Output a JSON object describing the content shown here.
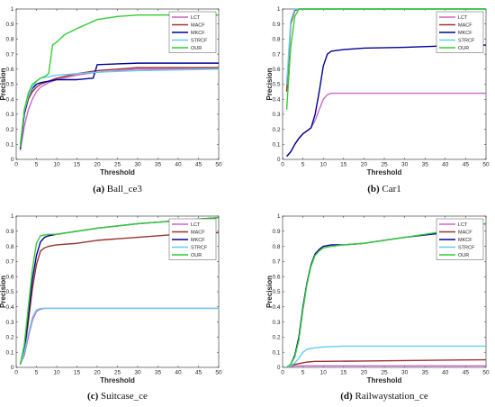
{
  "chart_data": [
    {
      "type": "line",
      "caption_letter": "(a)",
      "caption_name": "Ball_ce3",
      "xlabel": "Threshold",
      "ylabel": "Precision",
      "xlim": [
        0,
        50
      ],
      "ylim": [
        0,
        1
      ],
      "xticks": [
        0,
        5,
        10,
        15,
        20,
        25,
        30,
        35,
        40,
        45,
        50
      ],
      "yticks": [
        0,
        0.1,
        0.2,
        0.3,
        0.4,
        0.5,
        0.6,
        0.7,
        0.8,
        0.9,
        1
      ],
      "grid": false,
      "legend_position": "top-right",
      "series": [
        {
          "name": "LCT",
          "color": "#cc66cc",
          "x": [
            1,
            2,
            3,
            4,
            5,
            6,
            8,
            10,
            15,
            20,
            30,
            50
          ],
          "y": [
            0.06,
            0.22,
            0.33,
            0.4,
            0.45,
            0.48,
            0.51,
            0.53,
            0.56,
            0.58,
            0.6,
            0.6
          ]
        },
        {
          "name": "MACF",
          "color": "#993333",
          "x": [
            1,
            2,
            3,
            4,
            5,
            6,
            8,
            10,
            15,
            20,
            30,
            50
          ],
          "y": [
            0.1,
            0.3,
            0.4,
            0.45,
            0.48,
            0.5,
            0.52,
            0.54,
            0.57,
            0.59,
            0.61,
            0.61
          ]
        },
        {
          "name": "MKCF",
          "color": "#000099",
          "x": [
            1,
            2,
            3,
            4,
            5,
            6,
            8,
            10,
            15,
            19,
            20,
            30,
            50
          ],
          "y": [
            0.07,
            0.3,
            0.42,
            0.47,
            0.5,
            0.51,
            0.52,
            0.53,
            0.53,
            0.54,
            0.63,
            0.64,
            0.64
          ]
        },
        {
          "name": "STRCF",
          "color": "#66ccee",
          "x": [
            1,
            2,
            3,
            4,
            5,
            6,
            8,
            10,
            15,
            20,
            30,
            50
          ],
          "y": [
            0.1,
            0.32,
            0.42,
            0.48,
            0.52,
            0.54,
            0.55,
            0.56,
            0.57,
            0.58,
            0.59,
            0.6
          ]
        },
        {
          "name": "OUR",
          "color": "#33cc33",
          "x": [
            1,
            2,
            3,
            4,
            5,
            6,
            7,
            8,
            9,
            10,
            12,
            15,
            20,
            25,
            30,
            50
          ],
          "y": [
            0.08,
            0.33,
            0.44,
            0.5,
            0.52,
            0.54,
            0.55,
            0.57,
            0.76,
            0.78,
            0.83,
            0.87,
            0.93,
            0.95,
            0.96,
            0.96
          ]
        }
      ]
    },
    {
      "type": "line",
      "caption_letter": "(b)",
      "caption_name": "Car1",
      "xlabel": "Threshold",
      "ylabel": "Precision",
      "xlim": [
        0,
        50
      ],
      "ylim": [
        0,
        1
      ],
      "xticks": [
        0,
        5,
        10,
        15,
        20,
        25,
        30,
        35,
        40,
        45,
        50
      ],
      "yticks": [
        0,
        0.1,
        0.2,
        0.3,
        0.4,
        0.5,
        0.6,
        0.7,
        0.8,
        0.9,
        1
      ],
      "grid": false,
      "legend_position": "top-right",
      "series": [
        {
          "name": "LCT",
          "color": "#cc66cc",
          "x": [
            1,
            2,
            3,
            4,
            5,
            6,
            7,
            8,
            9,
            10,
            11,
            12,
            15,
            20,
            50
          ],
          "y": [
            0.02,
            0.05,
            0.1,
            0.14,
            0.17,
            0.19,
            0.21,
            0.26,
            0.33,
            0.4,
            0.43,
            0.44,
            0.44,
            0.44,
            0.44
          ]
        },
        {
          "name": "MACF",
          "color": "#993333",
          "x": [
            1,
            2,
            3,
            4,
            5,
            50
          ],
          "y": [
            0.45,
            0.9,
            0.99,
            1.0,
            1.0,
            1.0
          ]
        },
        {
          "name": "MKCF",
          "color": "#000099",
          "x": [
            1,
            2,
            3,
            4,
            5,
            6,
            7,
            8,
            9,
            10,
            11,
            12,
            15,
            20,
            30,
            40,
            50
          ],
          "y": [
            0.02,
            0.05,
            0.1,
            0.14,
            0.17,
            0.19,
            0.21,
            0.3,
            0.45,
            0.62,
            0.7,
            0.72,
            0.73,
            0.74,
            0.745,
            0.755,
            0.76
          ]
        },
        {
          "name": "STRCF",
          "color": "#66ccee",
          "x": [
            1,
            2,
            3,
            4,
            50
          ],
          "y": [
            0.5,
            0.92,
            1.0,
            1.0,
            1.0
          ]
        },
        {
          "name": "OUR",
          "color": "#33cc33",
          "x": [
            1,
            2,
            3,
            4,
            5,
            50
          ],
          "y": [
            0.33,
            0.75,
            0.95,
            1.0,
            1.0,
            1.0
          ]
        }
      ]
    },
    {
      "type": "line",
      "caption_letter": "(c)",
      "caption_name": "Suitcase_ce",
      "xlabel": "Threshold",
      "ylabel": "Precision",
      "xlim": [
        0,
        50
      ],
      "ylim": [
        0,
        1
      ],
      "xticks": [
        0,
        5,
        10,
        15,
        20,
        25,
        30,
        35,
        40,
        45,
        50
      ],
      "yticks": [
        0,
        0.1,
        0.2,
        0.3,
        0.4,
        0.5,
        0.6,
        0.7,
        0.8,
        0.9,
        1
      ],
      "grid": false,
      "legend_position": "top-right",
      "series": [
        {
          "name": "LCT",
          "color": "#cc66cc",
          "x": [
            1,
            2,
            3,
            4,
            5,
            6,
            7,
            10,
            20,
            50
          ],
          "y": [
            0.02,
            0.08,
            0.2,
            0.31,
            0.37,
            0.385,
            0.39,
            0.39,
            0.39,
            0.39
          ]
        },
        {
          "name": "MACF",
          "color": "#993333",
          "x": [
            1,
            2,
            3,
            4,
            5,
            6,
            7,
            8,
            10,
            15,
            20,
            30,
            40,
            45,
            50
          ],
          "y": [
            0.02,
            0.1,
            0.3,
            0.52,
            0.68,
            0.77,
            0.79,
            0.8,
            0.81,
            0.82,
            0.84,
            0.86,
            0.88,
            0.89,
            0.89
          ]
        },
        {
          "name": "MKCF",
          "color": "#000099",
          "x": [
            1,
            2,
            3,
            4,
            5,
            6,
            7,
            8,
            10,
            20,
            30,
            40,
            45,
            50
          ],
          "y": [
            0.02,
            0.12,
            0.35,
            0.58,
            0.74,
            0.83,
            0.86,
            0.87,
            0.88,
            0.92,
            0.95,
            0.97,
            0.98,
            0.99
          ]
        },
        {
          "name": "STRCF",
          "color": "#66ccee",
          "x": [
            1,
            2,
            3,
            4,
            5,
            6,
            7,
            10,
            20,
            50
          ],
          "y": [
            0.02,
            0.1,
            0.22,
            0.33,
            0.38,
            0.39,
            0.39,
            0.39,
            0.39,
            0.39
          ]
        },
        {
          "name": "OUR",
          "color": "#33cc33",
          "x": [
            1,
            2,
            3,
            4,
            5,
            6,
            7,
            8,
            10,
            20,
            30,
            40,
            45,
            50
          ],
          "y": [
            0.02,
            0.15,
            0.4,
            0.65,
            0.82,
            0.87,
            0.875,
            0.88,
            0.88,
            0.92,
            0.95,
            0.97,
            0.98,
            0.99
          ]
        }
      ]
    },
    {
      "type": "line",
      "caption_letter": "(d)",
      "caption_name": "Railwaystation_ce",
      "xlabel": "Threshold",
      "ylabel": "Precision",
      "xlim": [
        0,
        50
      ],
      "ylim": [
        0,
        1
      ],
      "xticks": [
        0,
        5,
        10,
        15,
        20,
        25,
        30,
        35,
        40,
        45,
        50
      ],
      "yticks": [
        0,
        0.1,
        0.2,
        0.3,
        0.4,
        0.5,
        0.6,
        0.7,
        0.8,
        0.9,
        1
      ],
      "grid": false,
      "legend_position": "top-right",
      "series": [
        {
          "name": "LCT",
          "color": "#cc66cc",
          "x": [
            1,
            2,
            3,
            4,
            5,
            50
          ],
          "y": [
            0,
            0.005,
            0.01,
            0.01,
            0.01,
            0.01
          ]
        },
        {
          "name": "MACF",
          "color": "#993333",
          "x": [
            1,
            2,
            3,
            4,
            5,
            6,
            8,
            10,
            20,
            30,
            40,
            50
          ],
          "y": [
            0,
            0.01,
            0.02,
            0.025,
            0.03,
            0.035,
            0.04,
            0.04,
            0.042,
            0.045,
            0.048,
            0.05
          ]
        },
        {
          "name": "MKCF",
          "color": "#000099",
          "x": [
            1,
            2,
            3,
            4,
            5,
            6,
            7,
            8,
            9,
            10,
            12,
            15,
            20,
            30,
            40,
            45,
            50
          ],
          "y": [
            0,
            0.02,
            0.08,
            0.2,
            0.4,
            0.56,
            0.68,
            0.75,
            0.78,
            0.8,
            0.81,
            0.81,
            0.82,
            0.86,
            0.89,
            0.93,
            0.95
          ]
        },
        {
          "name": "STRCF",
          "color": "#66ccee",
          "x": [
            1,
            2,
            3,
            4,
            5,
            6,
            7,
            8,
            10,
            15,
            20,
            50
          ],
          "y": [
            0,
            0.01,
            0.03,
            0.06,
            0.1,
            0.12,
            0.125,
            0.13,
            0.135,
            0.14,
            0.14,
            0.14
          ]
        },
        {
          "name": "OUR",
          "color": "#33cc33",
          "x": [
            1,
            2,
            3,
            4,
            5,
            6,
            7,
            8,
            9,
            10,
            12,
            15,
            20,
            30,
            40,
            45,
            50
          ],
          "y": [
            0,
            0.02,
            0.07,
            0.18,
            0.38,
            0.55,
            0.67,
            0.74,
            0.77,
            0.79,
            0.8,
            0.81,
            0.82,
            0.86,
            0.9,
            0.93,
            0.95
          ]
        }
      ]
    }
  ]
}
